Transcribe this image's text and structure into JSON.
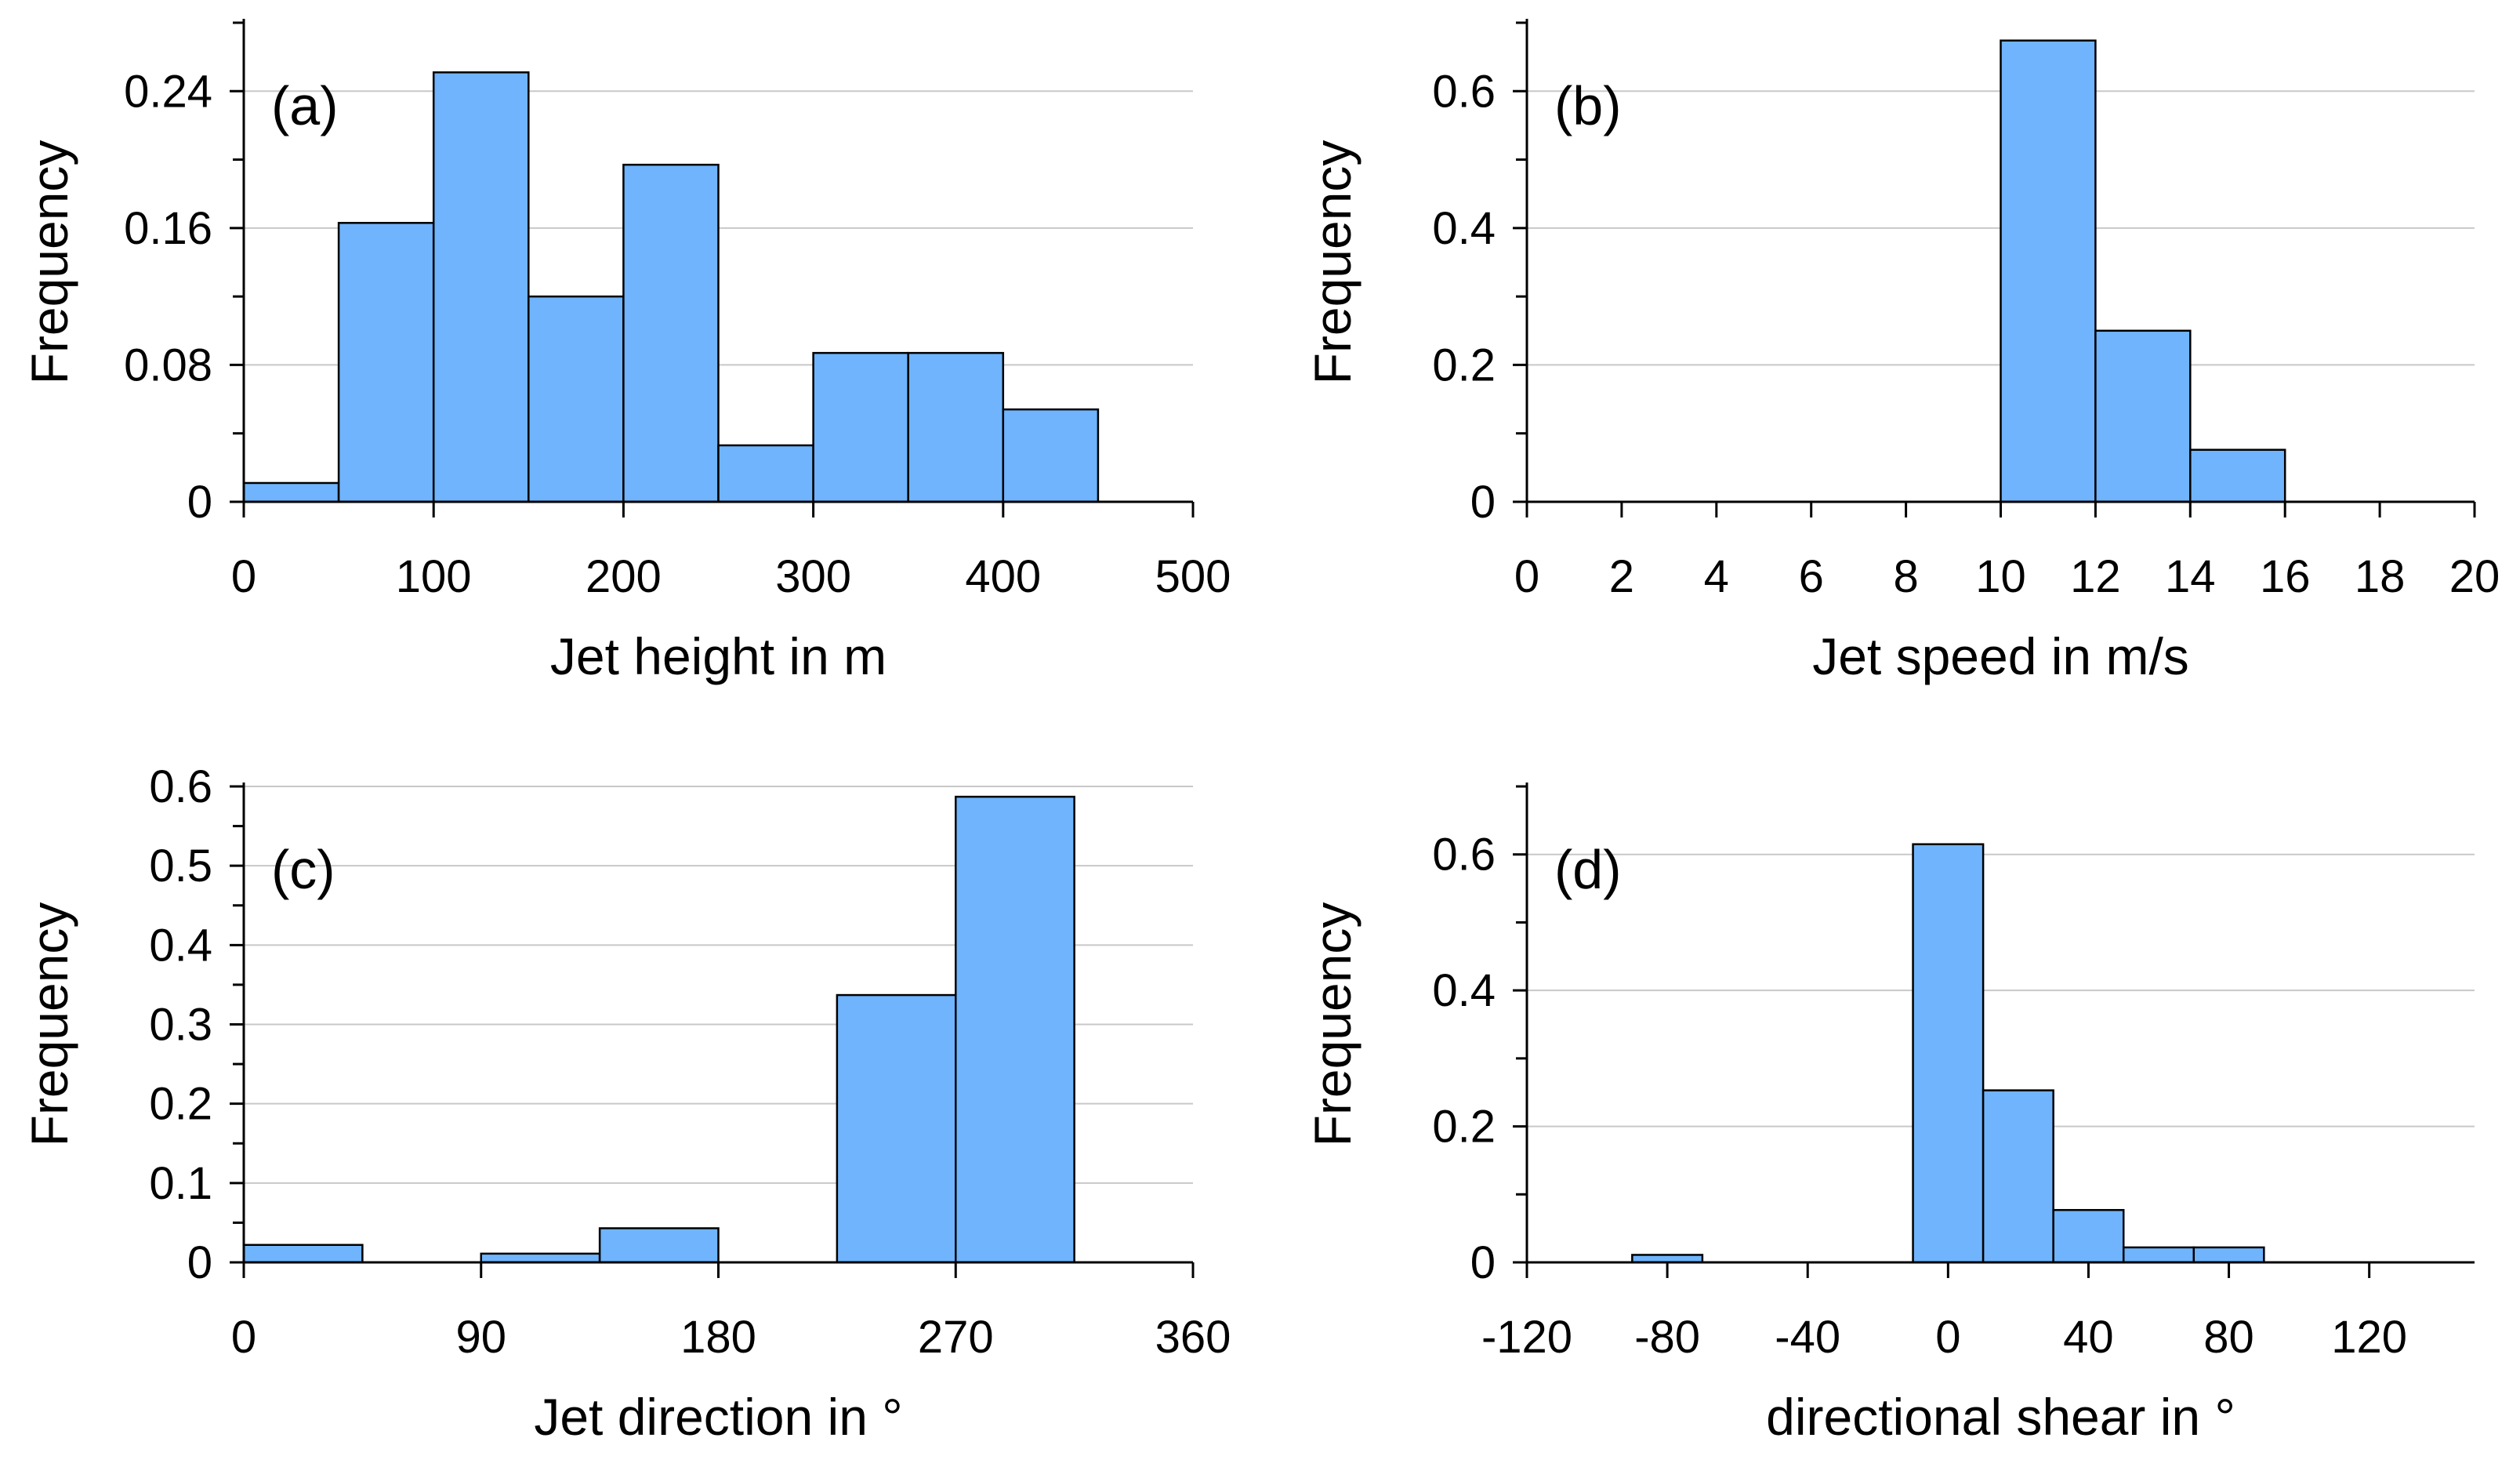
{
  "chart_data": [
    {
      "type": "bar",
      "panel_label": "(a)",
      "xlabel": "Jet height in m",
      "ylabel": "Frequency",
      "xlim": [
        0,
        500
      ],
      "ylim": [
        0,
        0.28
      ],
      "x_ticks": [
        0,
        100,
        200,
        300,
        400,
        500
      ],
      "x_tick_labels": [
        "0",
        "100",
        "200",
        "300",
        "400",
        "500"
      ],
      "y_ticks": [
        0,
        0.08,
        0.16,
        0.24
      ],
      "y_tick_labels": [
        "0",
        "0.08",
        "0.16",
        "0.24"
      ],
      "y_minor_step": 0.04,
      "grid": true,
      "bin_edges": [
        0,
        50,
        100,
        150,
        200,
        250,
        300,
        350,
        400,
        450
      ],
      "values": [
        0.011,
        0.163,
        0.251,
        0.12,
        0.197,
        0.033,
        0.087,
        0.087,
        0.054
      ]
    },
    {
      "type": "bar",
      "panel_label": "(b)",
      "xlabel": "Jet speed in m/s",
      "ylabel": "Frequency",
      "xlim": [
        0,
        20
      ],
      "ylim": [
        0,
        0.7
      ],
      "x_ticks": [
        0,
        2,
        4,
        6,
        8,
        10,
        12,
        14,
        16,
        18,
        20
      ],
      "x_tick_labels": [
        "0",
        "2",
        "4",
        "6",
        "8",
        "10",
        "12",
        "14",
        "16",
        "18",
        "20"
      ],
      "y_ticks": [
        0,
        0.2,
        0.4,
        0.6
      ],
      "y_tick_labels": [
        "0",
        "0.2",
        "0.4",
        "0.6"
      ],
      "y_minor_step": 0.1,
      "grid": true,
      "bin_edges": [
        10,
        12,
        14,
        16
      ],
      "values": [
        0.674,
        0.25,
        0.076
      ]
    },
    {
      "type": "bar",
      "panel_label": "(c)",
      "xlabel": "Jet direction in °",
      "ylabel": "Frequency",
      "xlim": [
        0,
        360
      ],
      "ylim": [
        0,
        0.6
      ],
      "x_ticks": [
        0,
        90,
        180,
        270,
        360
      ],
      "x_tick_labels": [
        "0",
        "90",
        "180",
        "270",
        "360"
      ],
      "y_ticks": [
        0,
        0.1,
        0.2,
        0.3,
        0.4,
        0.5,
        0.6
      ],
      "y_tick_labels": [
        "0",
        "0.1",
        "0.2",
        "0.3",
        "0.4",
        "0.5",
        "0.6"
      ],
      "y_minor_step": 0.05,
      "grid": true,
      "bin_edges": [
        0,
        45,
        90,
        135,
        180,
        225,
        270,
        315
      ],
      "values": [
        0.022,
        0,
        0.011,
        0.043,
        0,
        0.337,
        0.587
      ]
    },
    {
      "type": "bar",
      "panel_label": "(d)",
      "xlabel": "directional shear in °",
      "ylabel": "Frequency",
      "xlim": [
        -120,
        150
      ],
      "ylim": [
        0,
        0.7
      ],
      "x_ticks": [
        -120,
        -80,
        -40,
        0,
        40,
        80,
        120
      ],
      "x_tick_labels": [
        "-120",
        "-80",
        "-40",
        "0",
        "40",
        "80",
        "120"
      ],
      "y_ticks": [
        0,
        0.2,
        0.4,
        0.6
      ],
      "y_tick_labels": [
        "0",
        "0.2",
        "0.4",
        "0.6"
      ],
      "y_minor_step": 0.1,
      "grid": true,
      "bin_edges": [
        -90,
        -70,
        -50,
        -30,
        -10,
        10,
        30,
        50,
        70,
        90
      ],
      "values": [
        0.011,
        0,
        0,
        0,
        0.615,
        0.253,
        0.077,
        0.022,
        0.022
      ]
    }
  ],
  "colors": {
    "bar_fill": "#6fb4fc",
    "bar_edge": "#000000",
    "grid": "#c8c8c8"
  }
}
